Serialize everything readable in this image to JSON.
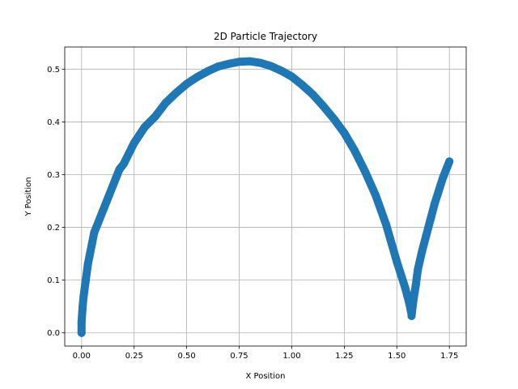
{
  "chart_data": {
    "type": "scatter",
    "title": "2D Particle Trajectory",
    "xlabel": "X Position",
    "ylabel": "Y Position",
    "xlim": [
      -0.08,
      1.83
    ],
    "ylim": [
      -0.025,
      0.542
    ],
    "xticks": [
      0.0,
      0.25,
      0.5,
      0.75,
      1.0,
      1.25,
      1.5,
      1.75
    ],
    "xtick_labels": [
      "0.00",
      "0.25",
      "0.50",
      "0.75",
      "1.00",
      "1.25",
      "1.50",
      "1.75"
    ],
    "yticks": [
      0.0,
      0.1,
      0.2,
      0.3,
      0.4,
      0.5
    ],
    "ytick_labels": [
      "0.0",
      "0.1",
      "0.2",
      "0.3",
      "0.4",
      "0.5"
    ],
    "grid": true,
    "marker_color": "#1f77b4",
    "connected_markers": true,
    "series": [
      {
        "x": [
          0.0,
          0.0,
          0.005,
          0.01,
          0.02,
          0.03,
          0.04,
          0.05,
          0.06,
          0.08,
          0.1,
          0.12,
          0.15,
          0.18,
          0.2,
          0.25,
          0.3,
          0.35,
          0.4,
          0.45,
          0.5,
          0.55,
          0.6,
          0.65,
          0.7,
          0.75,
          0.8,
          0.85,
          0.9,
          0.95,
          1.0,
          1.05,
          1.1,
          1.15,
          1.2,
          1.25,
          1.3,
          1.35,
          1.4,
          1.45,
          1.5,
          1.52,
          1.54,
          1.55,
          1.56,
          1.565,
          1.57,
          1.57,
          1.575,
          1.58,
          1.59,
          1.6,
          1.62,
          1.64,
          1.66,
          1.68,
          1.7,
          1.72,
          1.74,
          1.75
        ],
        "y": [
          0.0,
          0.02,
          0.05,
          0.07,
          0.1,
          0.13,
          0.15,
          0.17,
          0.19,
          0.21,
          0.23,
          0.25,
          0.28,
          0.31,
          0.32,
          0.36,
          0.39,
          0.41,
          0.436,
          0.455,
          0.472,
          0.485,
          0.496,
          0.505,
          0.51,
          0.514,
          0.515,
          0.512,
          0.506,
          0.497,
          0.486,
          0.47,
          0.452,
          0.43,
          0.406,
          0.379,
          0.345,
          0.305,
          0.26,
          0.204,
          0.135,
          0.11,
          0.085,
          0.07,
          0.055,
          0.045,
          0.035,
          0.032,
          0.05,
          0.065,
          0.09,
          0.12,
          0.155,
          0.185,
          0.215,
          0.245,
          0.27,
          0.295,
          0.315,
          0.325
        ]
      }
    ]
  }
}
